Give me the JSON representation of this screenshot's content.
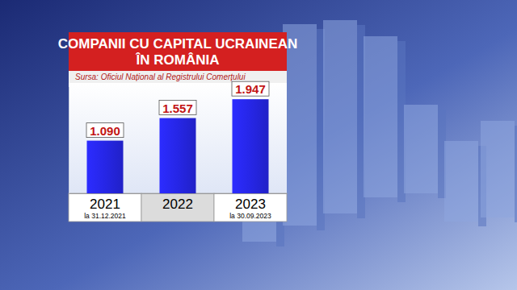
{
  "chart_data": {
    "type": "bar",
    "title": "COMPANII CU CAPITAL UCRAINEAN\nÎN ROMÂNIA",
    "subtitle": "Sursa: Oficiul Național al Registrului Comerțului",
    "categories": [
      "2021",
      "2022",
      "2023"
    ],
    "category_sublabels": [
      "la 31.12.2021",
      null,
      "la 30.09.2023"
    ],
    "values": [
      1090,
      1557,
      1947
    ],
    "value_labels": [
      "1.090",
      "1.557",
      "1.947"
    ],
    "color": "#2626e6",
    "ylim": [
      0,
      2200
    ],
    "grid": false,
    "data_labels": true,
    "tick_labels": "x"
  }
}
